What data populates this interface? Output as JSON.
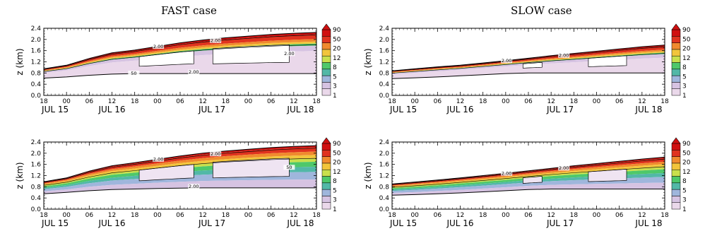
{
  "titles": {
    "left": "FAST case",
    "right": "SLOW case"
  },
  "chart_data": [
    {
      "type": "heatmap",
      "panel": "FAST case, top",
      "ylabel": "z (km)",
      "ylim": [
        0,
        2.4
      ],
      "yticks": [
        "0.0",
        "0.4",
        "0.8",
        "1.2",
        "1.6",
        "2.0",
        "2.4"
      ],
      "xticks_hours": [
        "18",
        "00",
        "06",
        "12",
        "18",
        "00",
        "06",
        "12",
        "18",
        "00",
        "06",
        "12",
        "18"
      ],
      "xticks_dates": [
        "JUL 15",
        "JUL 16",
        "JUL 17",
        "JUL 18"
      ],
      "colorbar_levels": [
        "1",
        "3",
        "5",
        "8",
        "12",
        "20",
        "50",
        "90"
      ],
      "contour_labels": [
        "2.00",
        "2.00",
        "2.00",
        "2.00",
        "50"
      ],
      "layer_top_km": [
        0.95,
        1.08,
        1.32,
        1.52,
        1.62,
        1.75,
        1.88,
        1.98,
        2.06,
        2.12,
        2.18,
        2.22,
        2.25
      ],
      "layer_bottom_km": [
        0.62,
        0.66,
        0.72,
        0.76,
        0.78,
        0.78,
        0.78,
        0.78,
        0.78,
        0.78,
        0.78,
        0.78,
        0.78
      ]
    },
    {
      "type": "heatmap",
      "panel": "SLOW case, top",
      "ylabel": "z (km)",
      "ylim": [
        0,
        2.4
      ],
      "yticks": [
        "0.0",
        "0.4",
        "0.8",
        "1.2",
        "1.6",
        "2.0",
        "2.4"
      ],
      "xticks_hours": [
        "18",
        "00",
        "06",
        "12",
        "18",
        "00",
        "06",
        "12",
        "18",
        "00",
        "06",
        "12",
        "18"
      ],
      "xticks_dates": [
        "JUL 15",
        "JUL 16",
        "JUL 17",
        "JUL 18"
      ],
      "colorbar_levels": [
        "1",
        "3",
        "5",
        "8",
        "12",
        "20",
        "50",
        "90"
      ],
      "contour_labels": [
        "2.00",
        "2.00"
      ],
      "layer_top_km": [
        0.88,
        0.95,
        1.02,
        1.08,
        1.16,
        1.24,
        1.33,
        1.42,
        1.5,
        1.58,
        1.66,
        1.74,
        1.8
      ],
      "layer_bottom_km": [
        0.6,
        0.63,
        0.66,
        0.7,
        0.74,
        0.78,
        0.8,
        0.8,
        0.8,
        0.8,
        0.8,
        0.8,
        0.8
      ]
    },
    {
      "type": "heatmap",
      "panel": "FAST case, bottom",
      "ylabel": "z (km)",
      "ylim": [
        0,
        2.4
      ],
      "yticks": [
        "0.0",
        "0.4",
        "0.8",
        "1.2",
        "1.6",
        "2.0",
        "2.4"
      ],
      "xticks_hours": [
        "18",
        "00",
        "06",
        "12",
        "18",
        "00",
        "06",
        "12",
        "18",
        "00",
        "06",
        "12",
        "18"
      ],
      "xticks_dates": [
        "JUL 15",
        "JUL 16",
        "JUL 17",
        "JUL 18"
      ],
      "colorbar_levels": [
        "1",
        "3",
        "5",
        "8",
        "12",
        "20",
        "50",
        "90"
      ],
      "contour_labels": [
        "2.00",
        "2.00",
        "2.00",
        "50"
      ],
      "layer_top_km": [
        0.98,
        1.12,
        1.36,
        1.55,
        1.66,
        1.78,
        1.9,
        2.0,
        2.08,
        2.14,
        2.2,
        2.24,
        2.27
      ],
      "layer_bottom_km": [
        0.55,
        0.6,
        0.66,
        0.7,
        0.72,
        0.74,
        0.75,
        0.76,
        0.76,
        0.76,
        0.76,
        0.76,
        0.76
      ]
    },
    {
      "type": "heatmap",
      "panel": "SLOW case, bottom",
      "ylabel": "z (km)",
      "ylim": [
        0,
        2.4
      ],
      "yticks": [
        "0.0",
        "0.4",
        "0.8",
        "1.2",
        "1.6",
        "2.0",
        "2.4"
      ],
      "xticks_hours": [
        "18",
        "00",
        "06",
        "12",
        "18",
        "00",
        "06",
        "12",
        "18",
        "00",
        "06",
        "12",
        "18"
      ],
      "xticks_dates": [
        "JUL 15",
        "JUL 16",
        "JUL 17",
        "JUL 18"
      ],
      "colorbar_levels": [
        "1",
        "3",
        "5",
        "8",
        "12",
        "20",
        "50",
        "90"
      ],
      "contour_labels": [
        "2.00",
        "2.00"
      ],
      "layer_top_km": [
        0.9,
        0.97,
        1.04,
        1.12,
        1.2,
        1.28,
        1.37,
        1.46,
        1.55,
        1.63,
        1.71,
        1.79,
        1.86
      ],
      "layer_bottom_km": [
        0.5,
        0.52,
        0.55,
        0.58,
        0.62,
        0.66,
        0.7,
        0.72,
        0.72,
        0.72,
        0.72,
        0.72,
        0.72
      ]
    }
  ],
  "colorbar_colors": [
    "#ead8ea",
    "#d6c3e2",
    "#9fb6dc",
    "#52b8a7",
    "#4ec86a",
    "#c9e04d",
    "#f2c53c",
    "#f08a2e",
    "#e0331f",
    "#d01010"
  ]
}
